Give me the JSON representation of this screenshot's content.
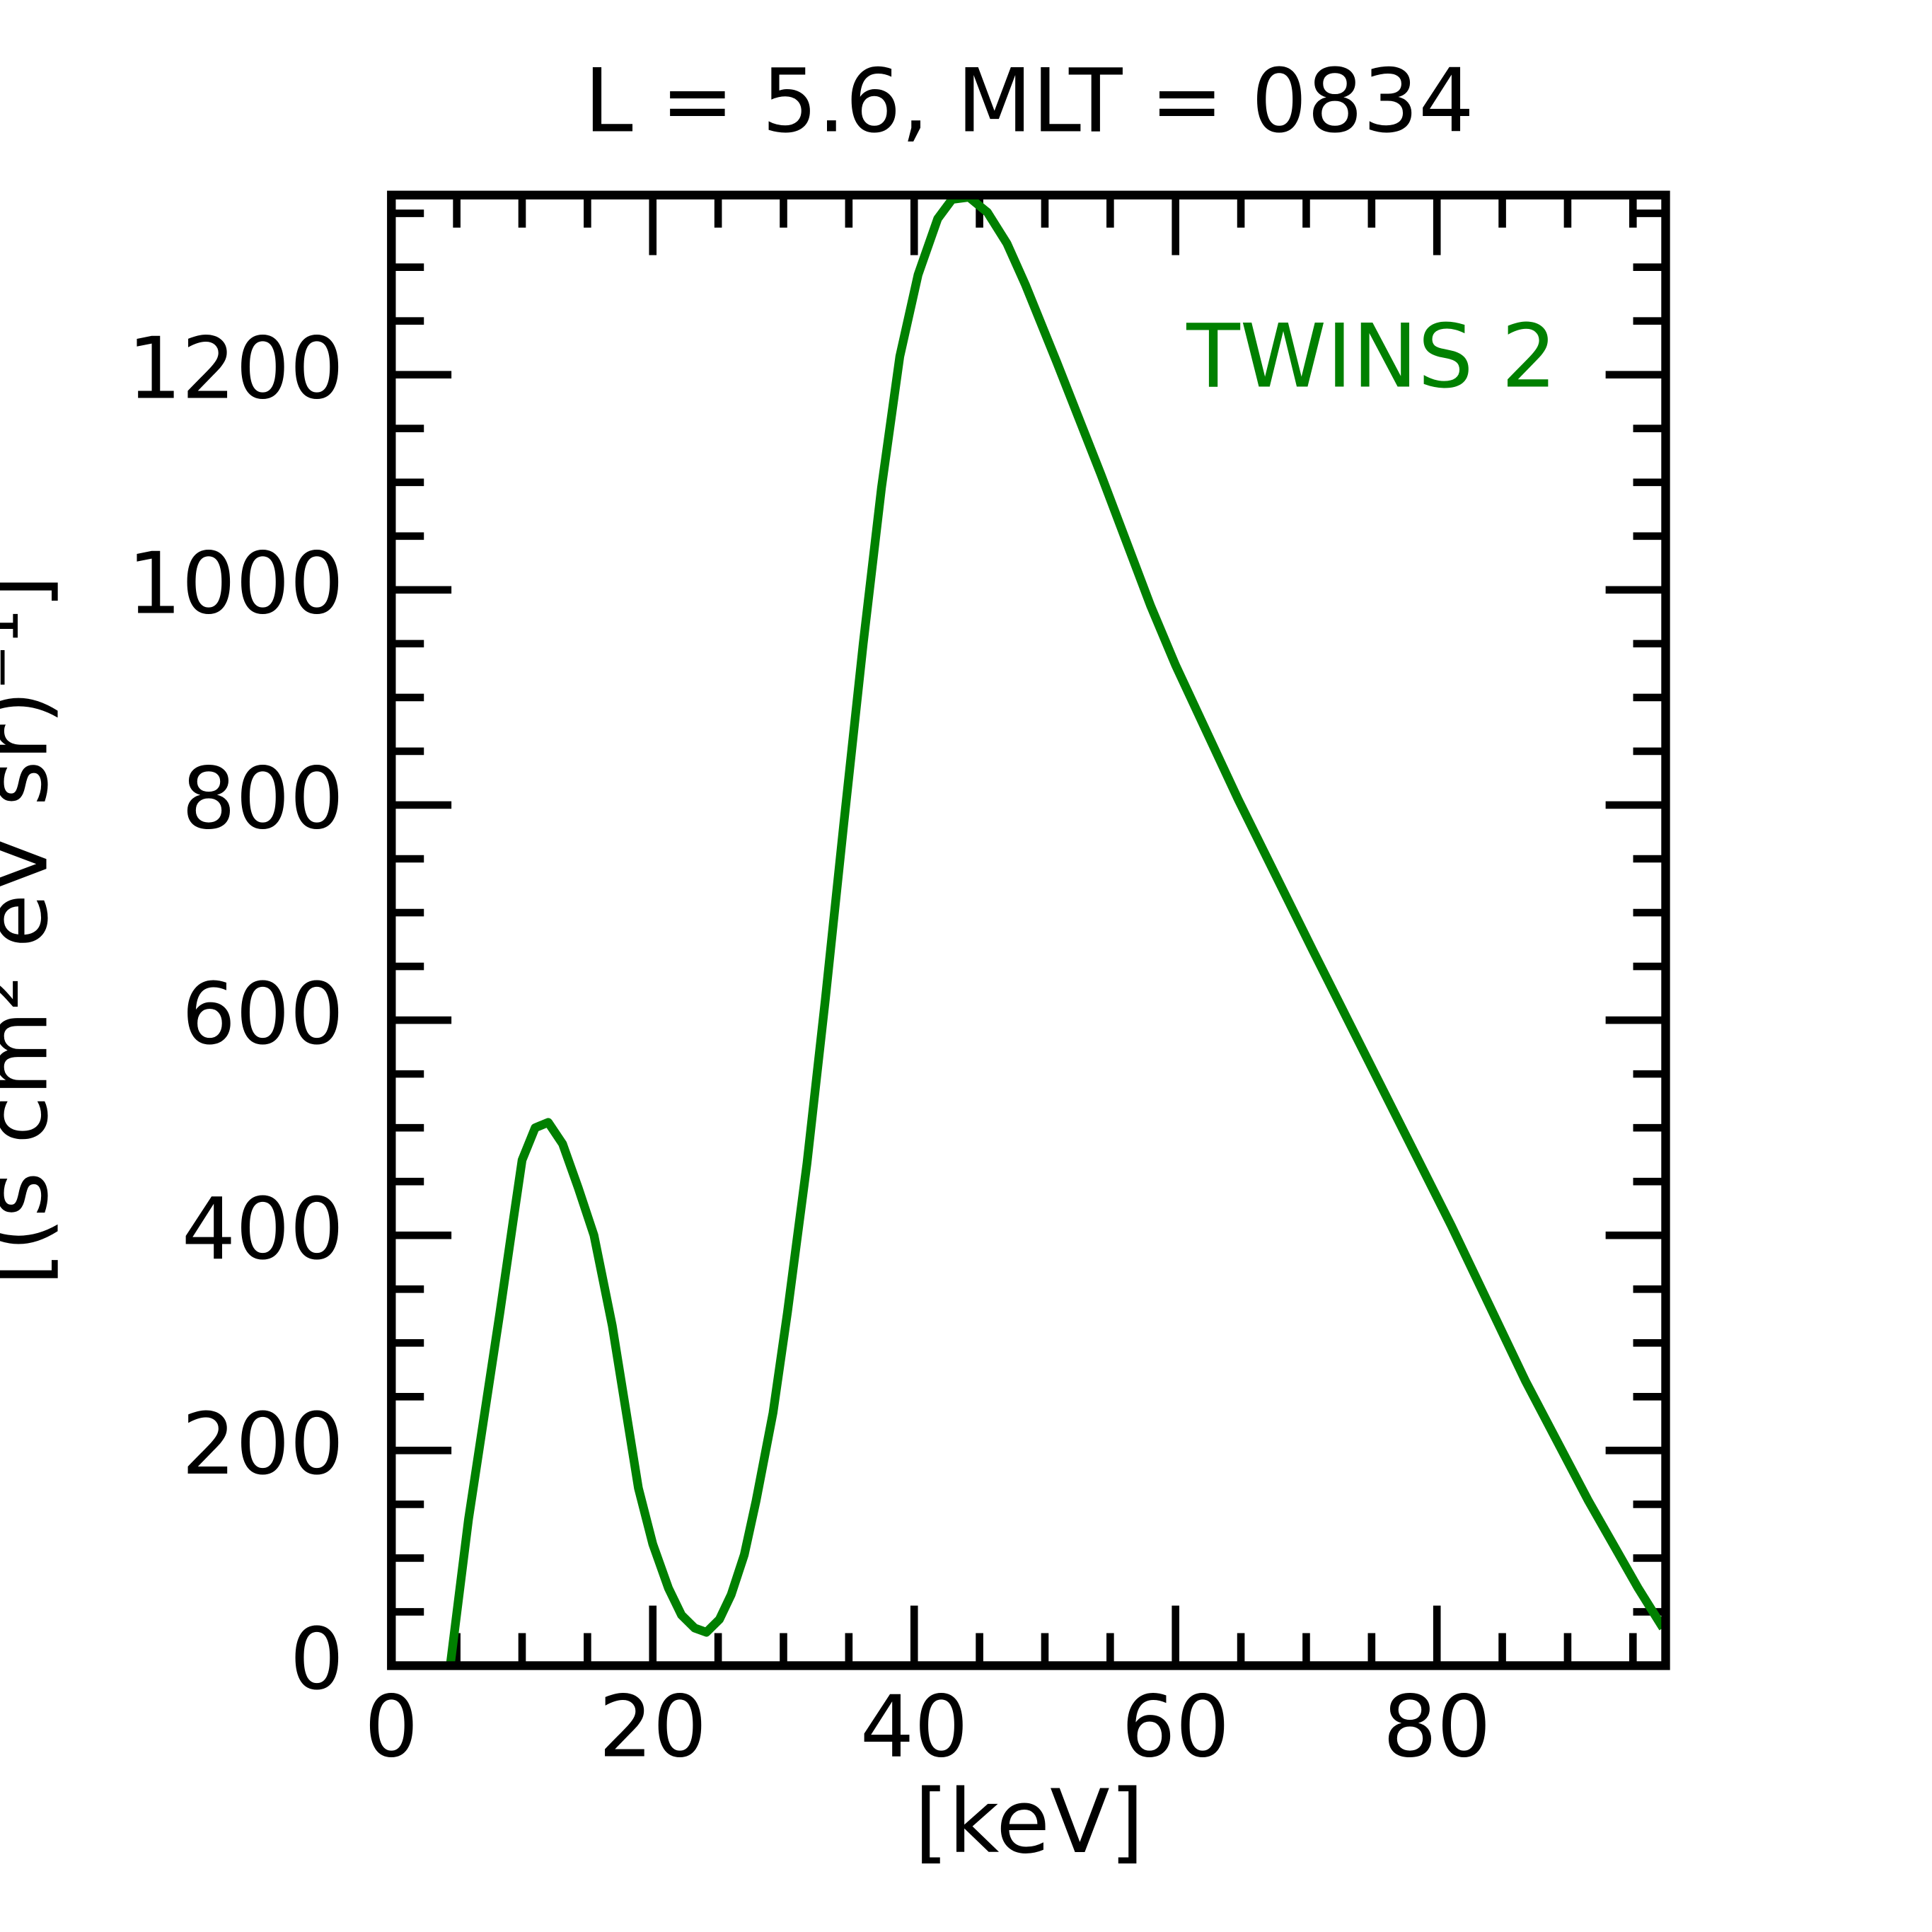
{
  "chart_data": {
    "type": "line",
    "title": "L =  5.6, MLT = 0834",
    "xlabel": "[keV]",
    "ylabel": "[(s cm² eV sr)⁻¹]",
    "x": [
      4.5,
      5.9,
      8.3,
      9.3,
      10.0,
      11.0,
      12.0,
      13.1,
      14.3,
      15.5,
      16.9,
      18.9,
      20.0,
      21.2,
      22.2,
      23.2,
      24.1,
      25.1,
      26.0,
      27.0,
      27.9,
      29.2,
      30.3,
      31.8,
      33.2,
      34.6,
      36.1,
      37.5,
      38.9,
      40.3,
      41.8,
      42.9,
      44.2,
      45.6,
      47.1,
      48.5,
      50.9,
      54.3,
      58.1,
      60.0,
      64.8,
      70.5,
      75.3,
      81.1,
      86.8,
      91.6,
      95.4,
      97.3
    ],
    "series": [
      {
        "name": "TWINS 2",
        "color": "#008000",
        "values": [
          0,
          136,
          328,
          412,
          470,
          500,
          505,
          485,
          444,
          400,
          316,
          165,
          113,
          72,
          47,
          35,
          31,
          43,
          66,
          103,
          153,
          235,
          328,
          467,
          619,
          781,
          950,
          1095,
          1217,
          1293,
          1345,
          1363,
          1365,
          1351,
          1322,
          1284,
          1212,
          1107,
          985,
          930,
          805,
          665,
          549,
          409,
          264,
          153,
          72,
          35
        ]
      }
    ],
    "xlim": [
      0,
      97.5
    ],
    "ylim": [
      0,
      1367
    ],
    "xticks": [
      0,
      20,
      40,
      60,
      80
    ],
    "yticks": [
      0,
      200,
      400,
      600,
      800,
      1000,
      1200
    ],
    "xminorticks": [
      5,
      10,
      15,
      25,
      30,
      35,
      45,
      50,
      55,
      65,
      70,
      75,
      85,
      90,
      95
    ],
    "yminorticks": [
      50,
      100,
      150,
      250,
      300,
      350,
      450,
      500,
      550,
      650,
      700,
      750,
      850,
      900,
      950,
      1050,
      1100,
      1150,
      1250,
      1300,
      1350
    ],
    "legend": "upper right"
  }
}
